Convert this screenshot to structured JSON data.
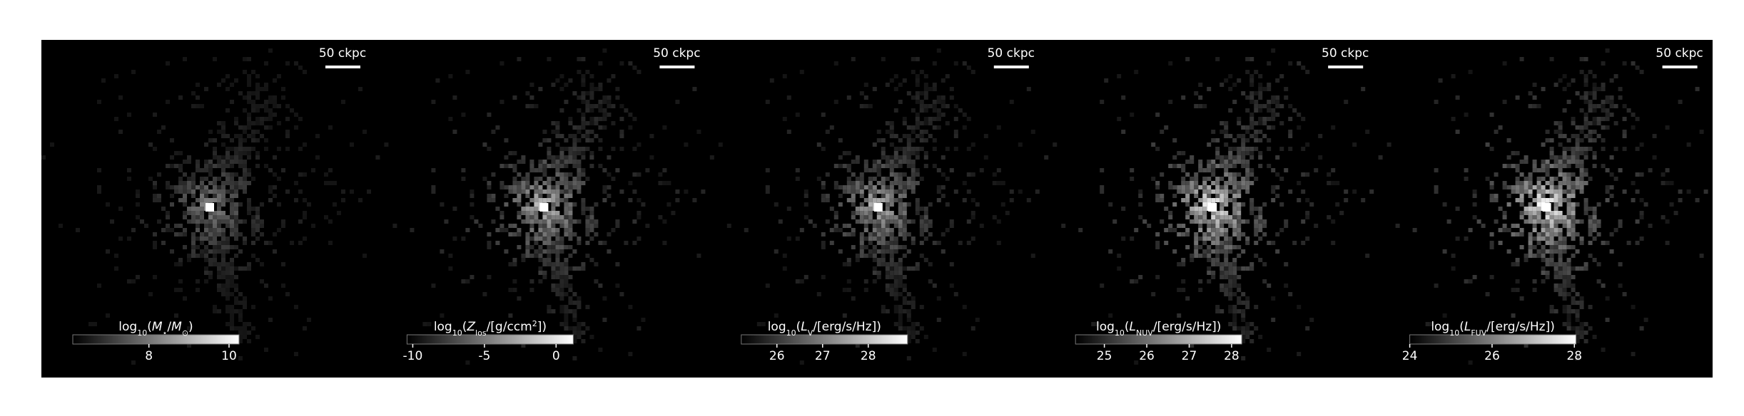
{
  "chart_data": [
    {
      "type": "image",
      "scale_bar": "50 ckpc",
      "colorbar_label": [
        {
          "text": "log"
        },
        {
          "sub": "10"
        },
        {
          "text": "("
        },
        {
          "italic": "M"
        },
        {
          "sub": "⋆"
        },
        {
          "text": "/"
        },
        {
          "italic": "M"
        },
        {
          "sub": "⊙"
        },
        {
          "text": ")"
        }
      ],
      "cbar_lim": [
        6.1,
        10.25
      ],
      "cbar_ticks": [
        8,
        10
      ]
    },
    {
      "type": "image",
      "scale_bar": "50 ckpc",
      "colorbar_label": [
        {
          "text": "log"
        },
        {
          "sub": "10"
        },
        {
          "text": "("
        },
        {
          "italic": "Z"
        },
        {
          "sub": "los"
        },
        {
          "text": "/[g/ccm"
        },
        {
          "sup": "2"
        },
        {
          "text": "])"
        }
      ],
      "cbar_lim": [
        -10.4,
        1.2
      ],
      "cbar_ticks": [
        -10,
        -5,
        0
      ]
    },
    {
      "type": "image",
      "scale_bar": "50 ckpc",
      "colorbar_label": [
        {
          "text": "log"
        },
        {
          "sub": "10"
        },
        {
          "text": "("
        },
        {
          "italic": "L"
        },
        {
          "sub": "V"
        },
        {
          "text": "/[erg/s/Hz])"
        }
      ],
      "cbar_lim": [
        25.22,
        28.86
      ],
      "cbar_ticks": [
        26,
        27,
        28
      ]
    },
    {
      "type": "image",
      "scale_bar": "50 ckpc",
      "colorbar_label": [
        {
          "text": "log"
        },
        {
          "sub": "10"
        },
        {
          "text": "("
        },
        {
          "italic": "L"
        },
        {
          "sub": "NUV"
        },
        {
          "text": "/[erg/s/Hz])"
        }
      ],
      "cbar_lim": [
        24.32,
        28.24
      ],
      "cbar_ticks": [
        25,
        26,
        27,
        28
      ]
    },
    {
      "type": "image",
      "scale_bar": "50 ckpc",
      "colorbar_label": [
        {
          "text": "log"
        },
        {
          "sub": "10"
        },
        {
          "text": "("
        },
        {
          "italic": "L"
        },
        {
          "sub": "FUV"
        },
        {
          "text": "/[erg/s/Hz])"
        }
      ],
      "cbar_lim": [
        24,
        28.04
      ],
      "cbar_ticks": [
        24,
        26,
        28
      ]
    }
  ]
}
